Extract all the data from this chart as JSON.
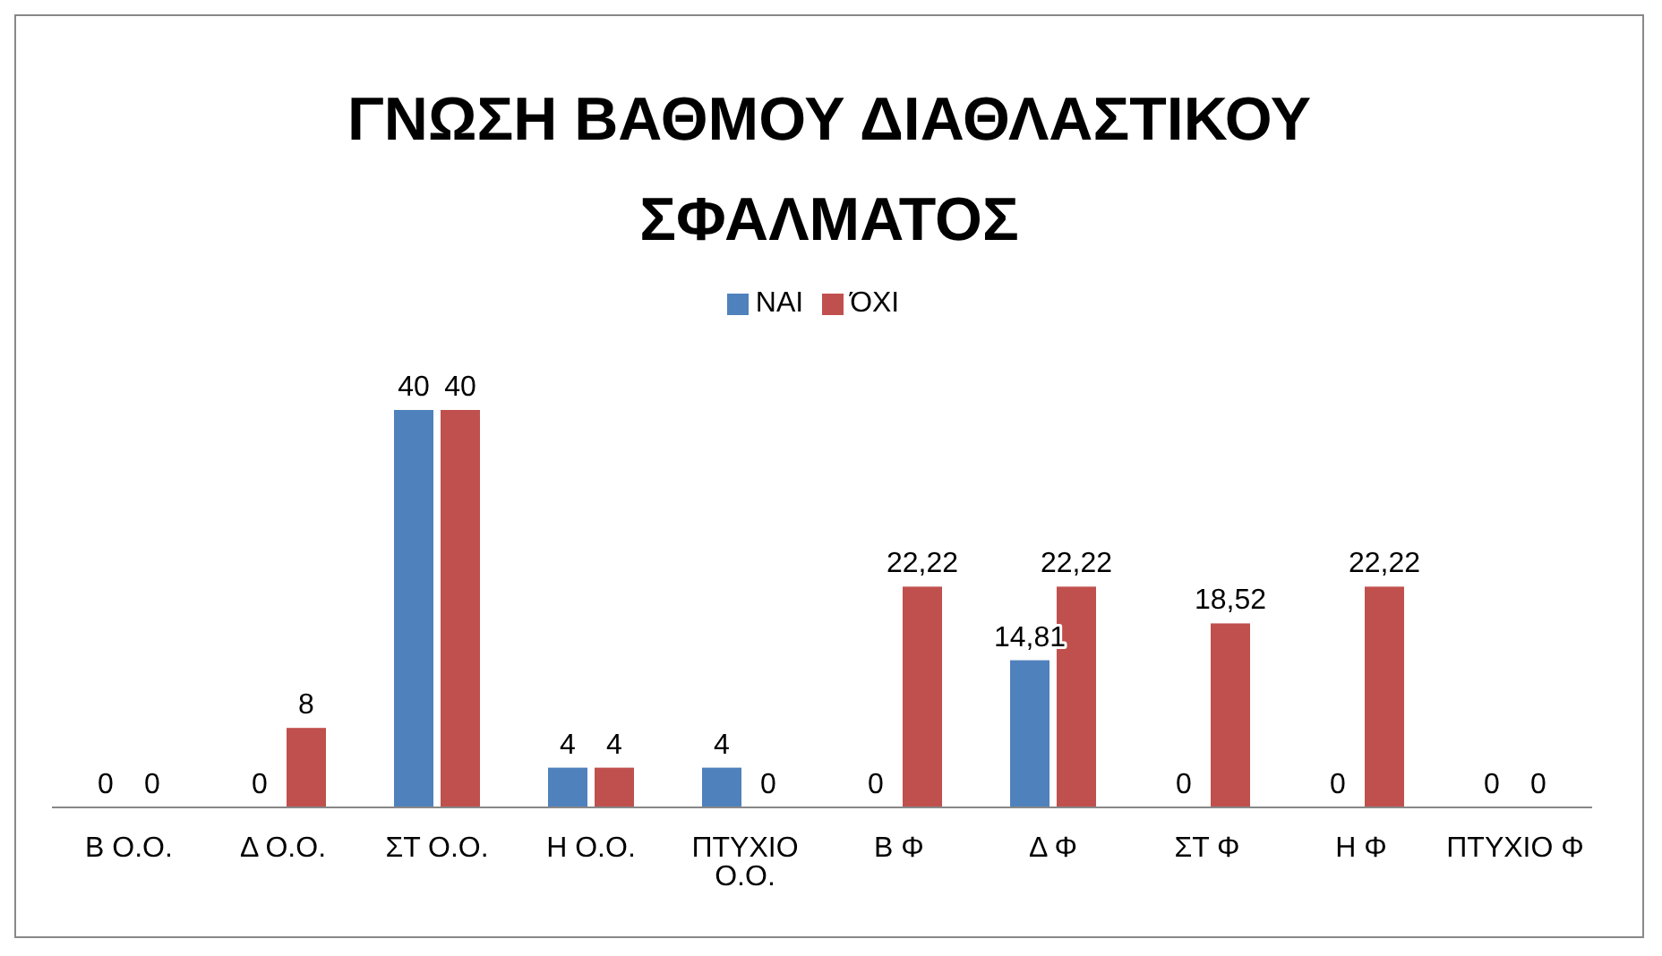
{
  "chart_data": {
    "type": "bar",
    "title": "ΓΝΩΣΗ ΒΑΘΜΟΥ ΔΙΑΘΛΑΣΤΙΚΟΥ ΣΦΑΛΜΑΤΟΣ",
    "categories": [
      "Β Ο.Ο.",
      "Δ Ο.Ο.",
      "ΣΤ Ο.Ο.",
      "Η Ο.Ο.",
      "ΠΤΥΧΙΟ Ο.Ο.",
      "Β Φ",
      "Δ Φ",
      "ΣΤ Φ",
      "Η Φ",
      "ΠΤΥΧΙΟ Φ"
    ],
    "series": [
      {
        "name": "ΝΑΙ",
        "color": "#4f81bd",
        "values": [
          0,
          0,
          40,
          4,
          4,
          0,
          14.81,
          0,
          0,
          0
        ],
        "value_labels": [
          "0",
          "0",
          "40",
          "4",
          "4",
          "0",
          "14,81",
          "0",
          "0",
          "0"
        ]
      },
      {
        "name": "ΌΧΙ",
        "color": "#c0504d",
        "values": [
          0,
          8,
          40,
          4,
          0,
          22.22,
          22.22,
          18.52,
          22.22,
          0
        ],
        "value_labels": [
          "0",
          "8",
          "40",
          "4",
          "0",
          "22,22",
          "22,22",
          "18,52",
          "22,22",
          "0"
        ]
      }
    ],
    "legend": "top",
    "grid": false
  }
}
